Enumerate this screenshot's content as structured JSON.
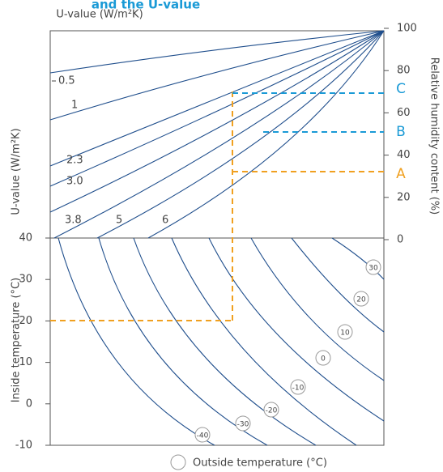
{
  "title": "and the U-value",
  "top_left_label": "U-value (W/m²K)",
  "left_top_axis_label": "U-value (W/m²K)",
  "left_bottom_axis_label": "Inside temperature (°C)",
  "right_axis_label": "Relative humidity content (%)",
  "right_ticks": [
    "100",
    "80",
    "60",
    "40",
    "20",
    "0"
  ],
  "left_ticks": [
    "40",
    "30",
    "20",
    "10",
    "0",
    "-10"
  ],
  "u_labels": [
    "0.5",
    "1",
    "2.3",
    "3.0",
    "3.8",
    "5",
    "6"
  ],
  "outside_temperature_labels": [
    "30",
    "20",
    "10",
    "0",
    "-10",
    "-20",
    "-30",
    "-40"
  ],
  "markers": [
    "A",
    "B",
    "C"
  ],
  "legend": "Outside temperature (°C)"
}
